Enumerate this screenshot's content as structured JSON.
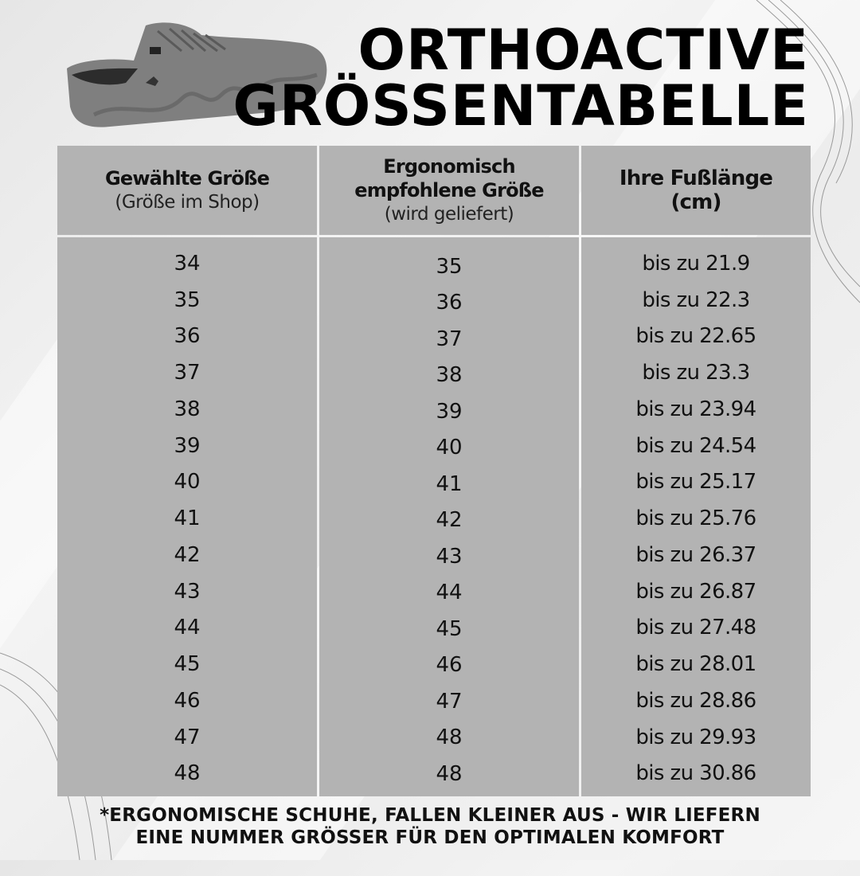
{
  "title": {
    "line1": "ORTHOACTIVE",
    "line2": "GRÖSSENTABELLE"
  },
  "table": {
    "headers": [
      {
        "main": "Gewählte Größe",
        "sub": "(Größe im Shop)"
      },
      {
        "main": "Ergonomisch empfohlene Größe",
        "sub": "(wird geliefert)"
      },
      {
        "main": "Ihre Fußlänge (cm)",
        "sub": ""
      }
    ],
    "rows": [
      [
        "34",
        "35",
        "bis zu 21.9"
      ],
      [
        "35",
        "36",
        "bis zu 22.3"
      ],
      [
        "36",
        "37",
        "bis zu 22.65"
      ],
      [
        "37",
        "38",
        "bis zu 23.3"
      ],
      [
        "38",
        "39",
        "bis zu 23.94"
      ],
      [
        "39",
        "40",
        "bis zu 24.54"
      ],
      [
        "40",
        "41",
        "bis zu 25.17"
      ],
      [
        "41",
        "42",
        "bis zu 25.76"
      ],
      [
        "42",
        "43",
        "bis zu 26.37"
      ],
      [
        "43",
        "44",
        "bis zu 26.87"
      ],
      [
        "44",
        "45",
        "bis zu 27.48"
      ],
      [
        "45",
        "46",
        "bis zu 28.01"
      ],
      [
        "46",
        "47",
        "bis zu 28.86"
      ],
      [
        "47",
        "48",
        "bis zu 29.93"
      ],
      [
        "48",
        "48",
        "bis zu 30.86"
      ]
    ]
  },
  "note": {
    "line1": "*ERGONOMISCHE SCHUHE, FALLEN KLEINER AUS - WIR LIEFERN",
    "line2": "EINE NUMMER GRÖSSER FÜR DEN OPTIMALEN KOMFORT"
  },
  "colors": {
    "table_bg": "#b3b3b3",
    "text": "#111111",
    "shoe": "#7d7d7d"
  }
}
